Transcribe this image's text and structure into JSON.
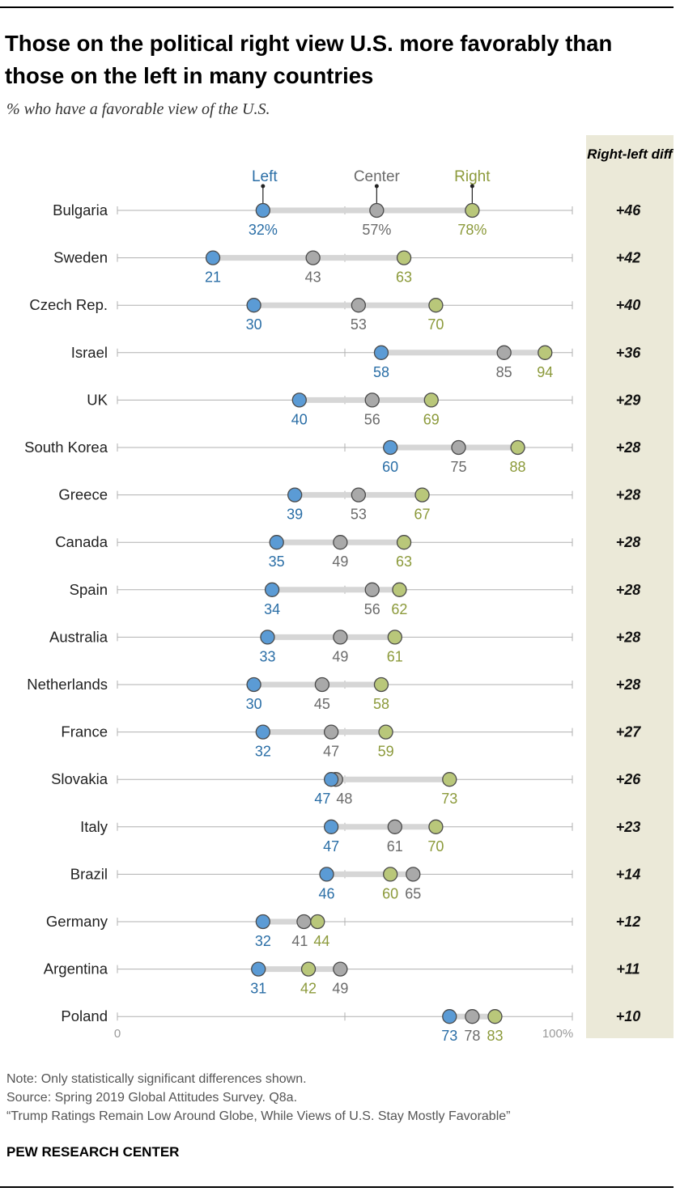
{
  "title": "Those on the political right view U.S. more favorably than those on the left in many countries",
  "subtitle": "% who have a favorable view of the U.S.",
  "diff_header": "Right-left diff",
  "legend": {
    "left": "Left",
    "center": "Center",
    "right": "Right"
  },
  "colors": {
    "left": "#5b9bd5",
    "left_text": "#2a6ea6",
    "center": "#a9a9a9",
    "center_text": "#6b6b6b",
    "right": "#b9c77a",
    "right_text": "#8c9a3b",
    "bar": "#d6d6d6",
    "axis": "#b0b0b0",
    "panel": "#ebe9d8"
  },
  "chart_data": {
    "type": "dot-plot",
    "xlim": [
      0,
      100
    ],
    "x_tick_labels": [
      "0",
      "100%"
    ],
    "series": [
      {
        "name": "Left",
        "key": "left"
      },
      {
        "name": "Center",
        "key": "center"
      },
      {
        "name": "Right",
        "key": "right"
      }
    ],
    "rows": [
      {
        "country": "Bulgaria",
        "left": 32,
        "center": 57,
        "right": 78,
        "diff": "+46",
        "left_label": "32%",
        "center_label": "57%",
        "right_label": "78%"
      },
      {
        "country": "Sweden",
        "left": 21,
        "center": 43,
        "right": 63,
        "diff": "+42"
      },
      {
        "country": "Czech Rep.",
        "left": 30,
        "center": 53,
        "right": 70,
        "diff": "+40"
      },
      {
        "country": "Israel",
        "left": 58,
        "center": 85,
        "right": 94,
        "diff": "+36"
      },
      {
        "country": "UK",
        "left": 40,
        "center": 56,
        "right": 69,
        "diff": "+29"
      },
      {
        "country": "South Korea",
        "left": 60,
        "center": 75,
        "right": 88,
        "diff": "+28"
      },
      {
        "country": "Greece",
        "left": 39,
        "center": 53,
        "right": 67,
        "diff": "+28"
      },
      {
        "country": "Canada",
        "left": 35,
        "center": 49,
        "right": 63,
        "diff": "+28"
      },
      {
        "country": "Spain",
        "left": 34,
        "center": 56,
        "right": 62,
        "diff": "+28"
      },
      {
        "country": "Australia",
        "left": 33,
        "center": 49,
        "right": 61,
        "diff": "+28"
      },
      {
        "country": "Netherlands",
        "left": 30,
        "center": 45,
        "right": 58,
        "diff": "+28"
      },
      {
        "country": "France",
        "left": 32,
        "center": 47,
        "right": 59,
        "diff": "+27"
      },
      {
        "country": "Slovakia",
        "left": 47,
        "center": 48,
        "right": 73,
        "diff": "+26"
      },
      {
        "country": "Italy",
        "left": 47,
        "center": 61,
        "right": 70,
        "diff": "+23"
      },
      {
        "country": "Brazil",
        "left": 46,
        "center": 65,
        "right": 60,
        "diff": "+14"
      },
      {
        "country": "Germany",
        "left": 32,
        "center": 41,
        "right": 44,
        "diff": "+12"
      },
      {
        "country": "Argentina",
        "left": 31,
        "center": 49,
        "right": 42,
        "diff": "+11"
      },
      {
        "country": "Poland",
        "left": 73,
        "center": 78,
        "right": 83,
        "diff": "+10"
      }
    ]
  },
  "notes": {
    "note": "Note: Only statistically significant differences shown.",
    "source": "Source: Spring 2019 Global Attitudes Survey. Q8a.",
    "report": "“Trump Ratings Remain Low Around Globe, While Views of U.S. Stay Mostly Favorable”"
  },
  "brand": "PEW RESEARCH CENTER"
}
